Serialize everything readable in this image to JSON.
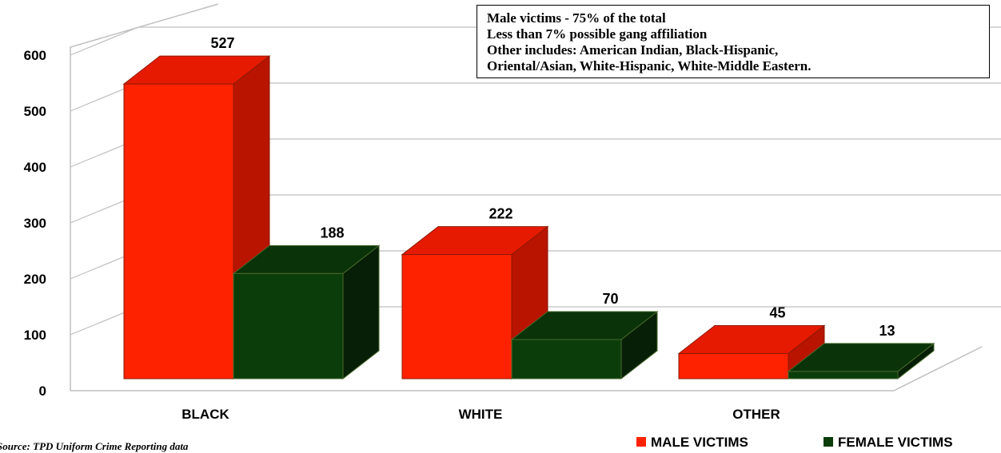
{
  "chart_data": {
    "type": "bar",
    "categories": [
      "BLACK",
      "WHITE",
      "OTHER"
    ],
    "series": [
      {
        "name": "MALE VICTIMS",
        "values": [
          527,
          222,
          45
        ],
        "color": "#ff2200"
      },
      {
        "name": "FEMALE VICTIMS",
        "values": [
          188,
          70,
          13
        ],
        "color": "#0b3d0b"
      }
    ],
    "data_labels": [
      [
        "527",
        "222",
        "45"
      ],
      [
        "188",
        "70",
        "13"
      ]
    ],
    "yticks": [
      0,
      100,
      200,
      300,
      400,
      500,
      600
    ],
    "ylim": [
      0,
      600
    ],
    "grid": true,
    "three_d": true,
    "legend_position": "bottom-right",
    "title": "",
    "xlabel": "",
    "ylabel": ""
  },
  "notes": [
    "Male victims - 75% of the total",
    "Less than 7% possible gang affiliation",
    "Other includes: American Indian, Black-Hispanic,",
    "Oriental/Asian,  White-Hispanic, White-Middle Eastern."
  ],
  "legend": {
    "male_label": "MALE VICTIMS",
    "female_label": "FEMALE VICTIMS"
  },
  "source": "Source: TPD Uniform Crime Reporting data",
  "colors": {
    "male_front": "#ff2200",
    "male_top": "#e61a00",
    "male_side": "#b81400",
    "female_front": "#0b3d0b",
    "female_top": "#0a330a",
    "female_side": "#061f06",
    "grid": "#bfbfbf"
  }
}
